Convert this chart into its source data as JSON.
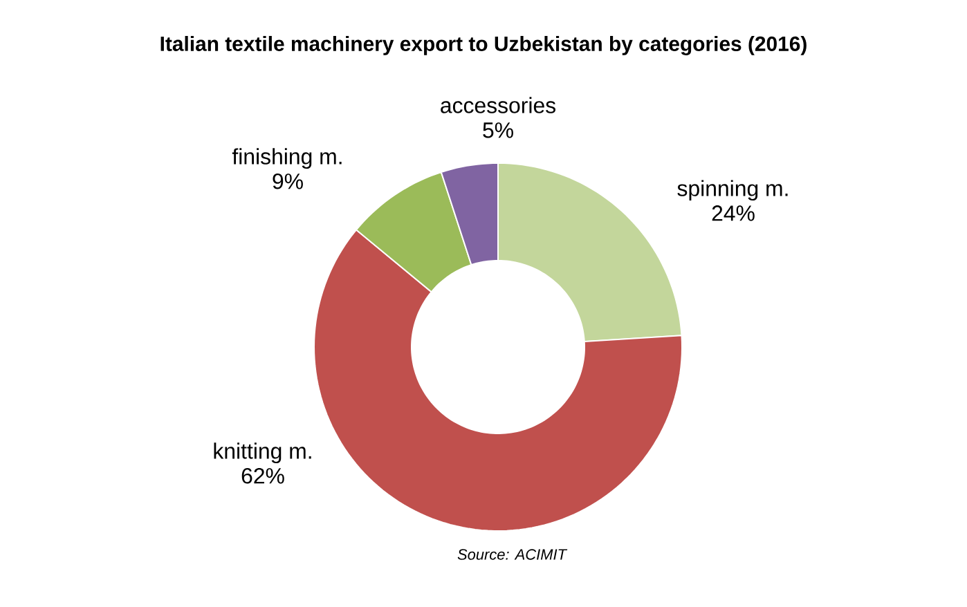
{
  "chart_data": {
    "type": "donut",
    "title": "Italian textile machinery export to Uzbekistan by categories (2016)",
    "categories": [
      "spinning m.",
      "knitting m.",
      "finishing m.",
      "accessories"
    ],
    "values": [
      24,
      62,
      9,
      5
    ],
    "value_labels": [
      "24%",
      "62%",
      "9%",
      "5%"
    ],
    "colors": [
      "#c3d69b",
      "#c0504d",
      "#9bbb59",
      "#8064a2"
    ],
    "annotations": [
      "Source: ACIMIT"
    ]
  }
}
